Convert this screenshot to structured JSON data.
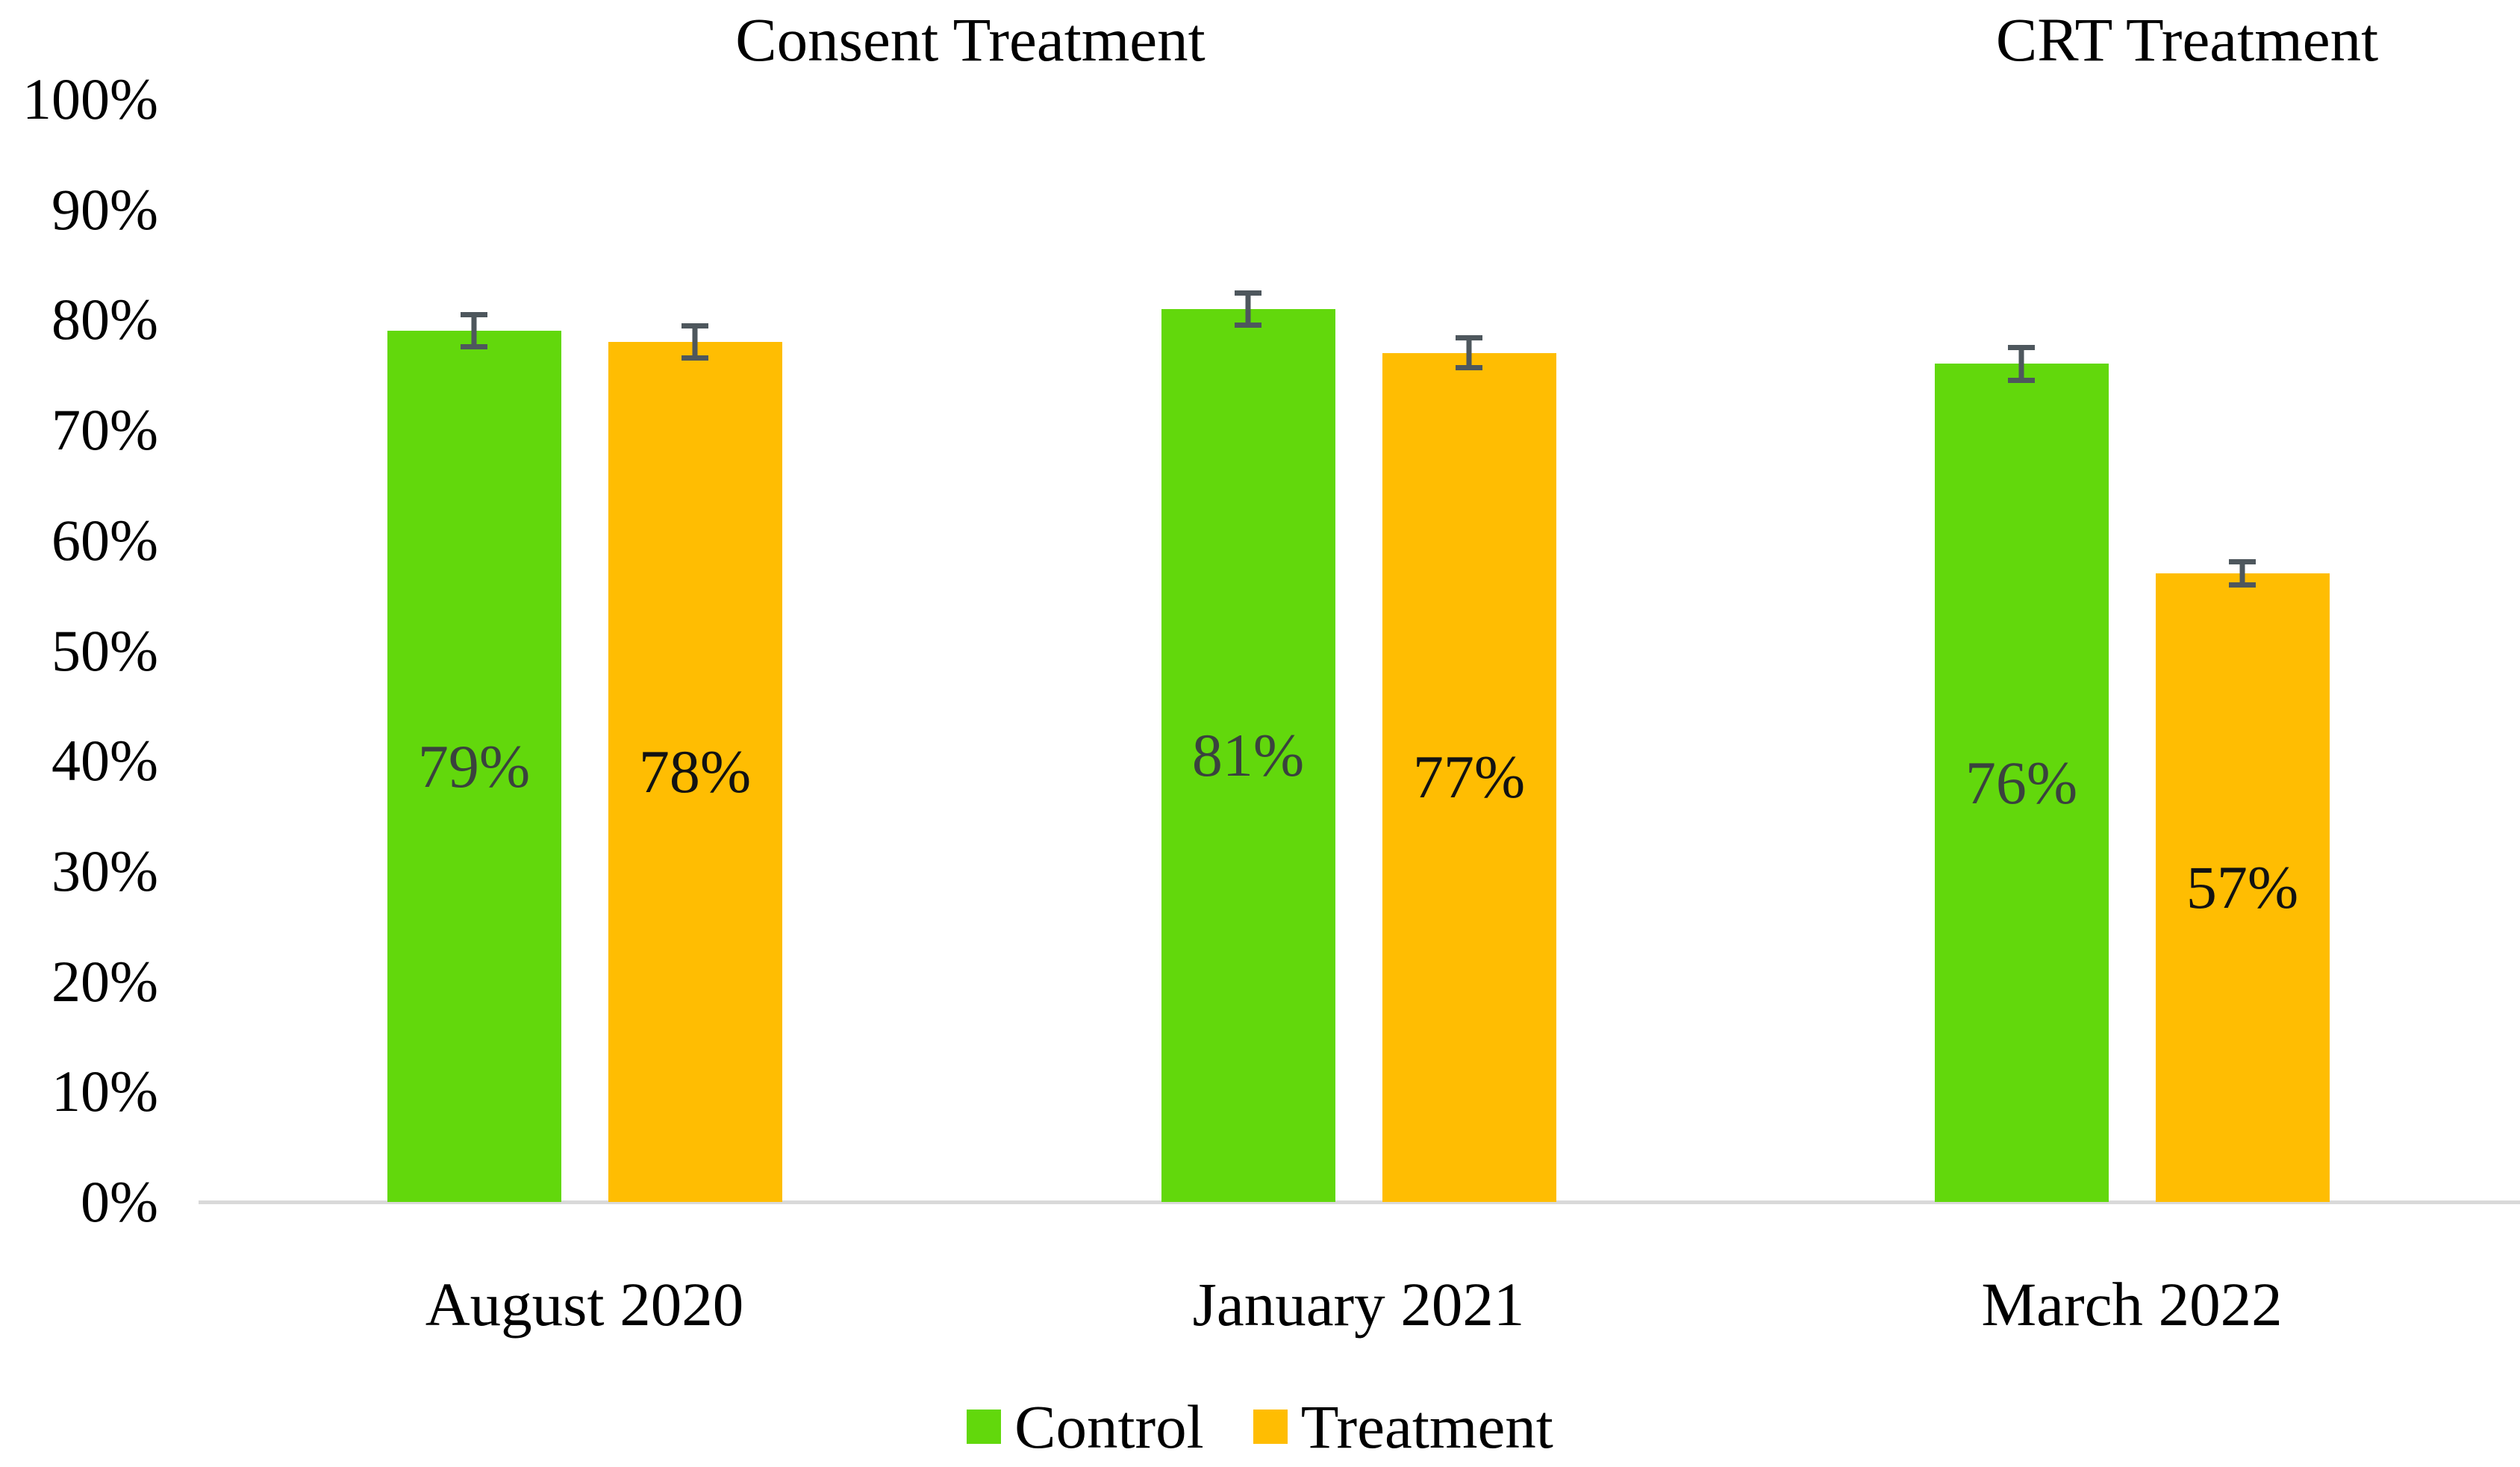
{
  "chart_data": {
    "type": "bar",
    "titles": {
      "consent": "Consent Treatment",
      "crt": "CRT Treatment"
    },
    "categories": [
      "August 2020",
      "January 2021",
      "March 2022"
    ],
    "series": [
      {
        "name": "Control",
        "color": "#62D80C",
        "label_color": "#3A423E",
        "values": [
          79,
          81,
          76
        ],
        "labels": [
          "79%",
          "81%",
          "76%"
        ],
        "errors": [
          1.7,
          1.7,
          1.7
        ]
      },
      {
        "name": "Treatment",
        "color": "#FFBD02",
        "label_color": "#121212",
        "values": [
          78,
          77,
          57
        ],
        "labels": [
          "78%",
          "77%",
          "57%"
        ],
        "errors": [
          1.7,
          1.6,
          1.3
        ]
      }
    ],
    "y_ticks": [
      "100%",
      "90%",
      "80%",
      "70%",
      "60%",
      "50%",
      "40%",
      "30%",
      "20%",
      "10%",
      "0%"
    ],
    "ylim": [
      0,
      100
    ],
    "grid": false,
    "legend_position": "bottom",
    "error_bar_color": "#4E575D",
    "axis_line_color": "#D9D9D9",
    "background": "#FFFFFF"
  }
}
